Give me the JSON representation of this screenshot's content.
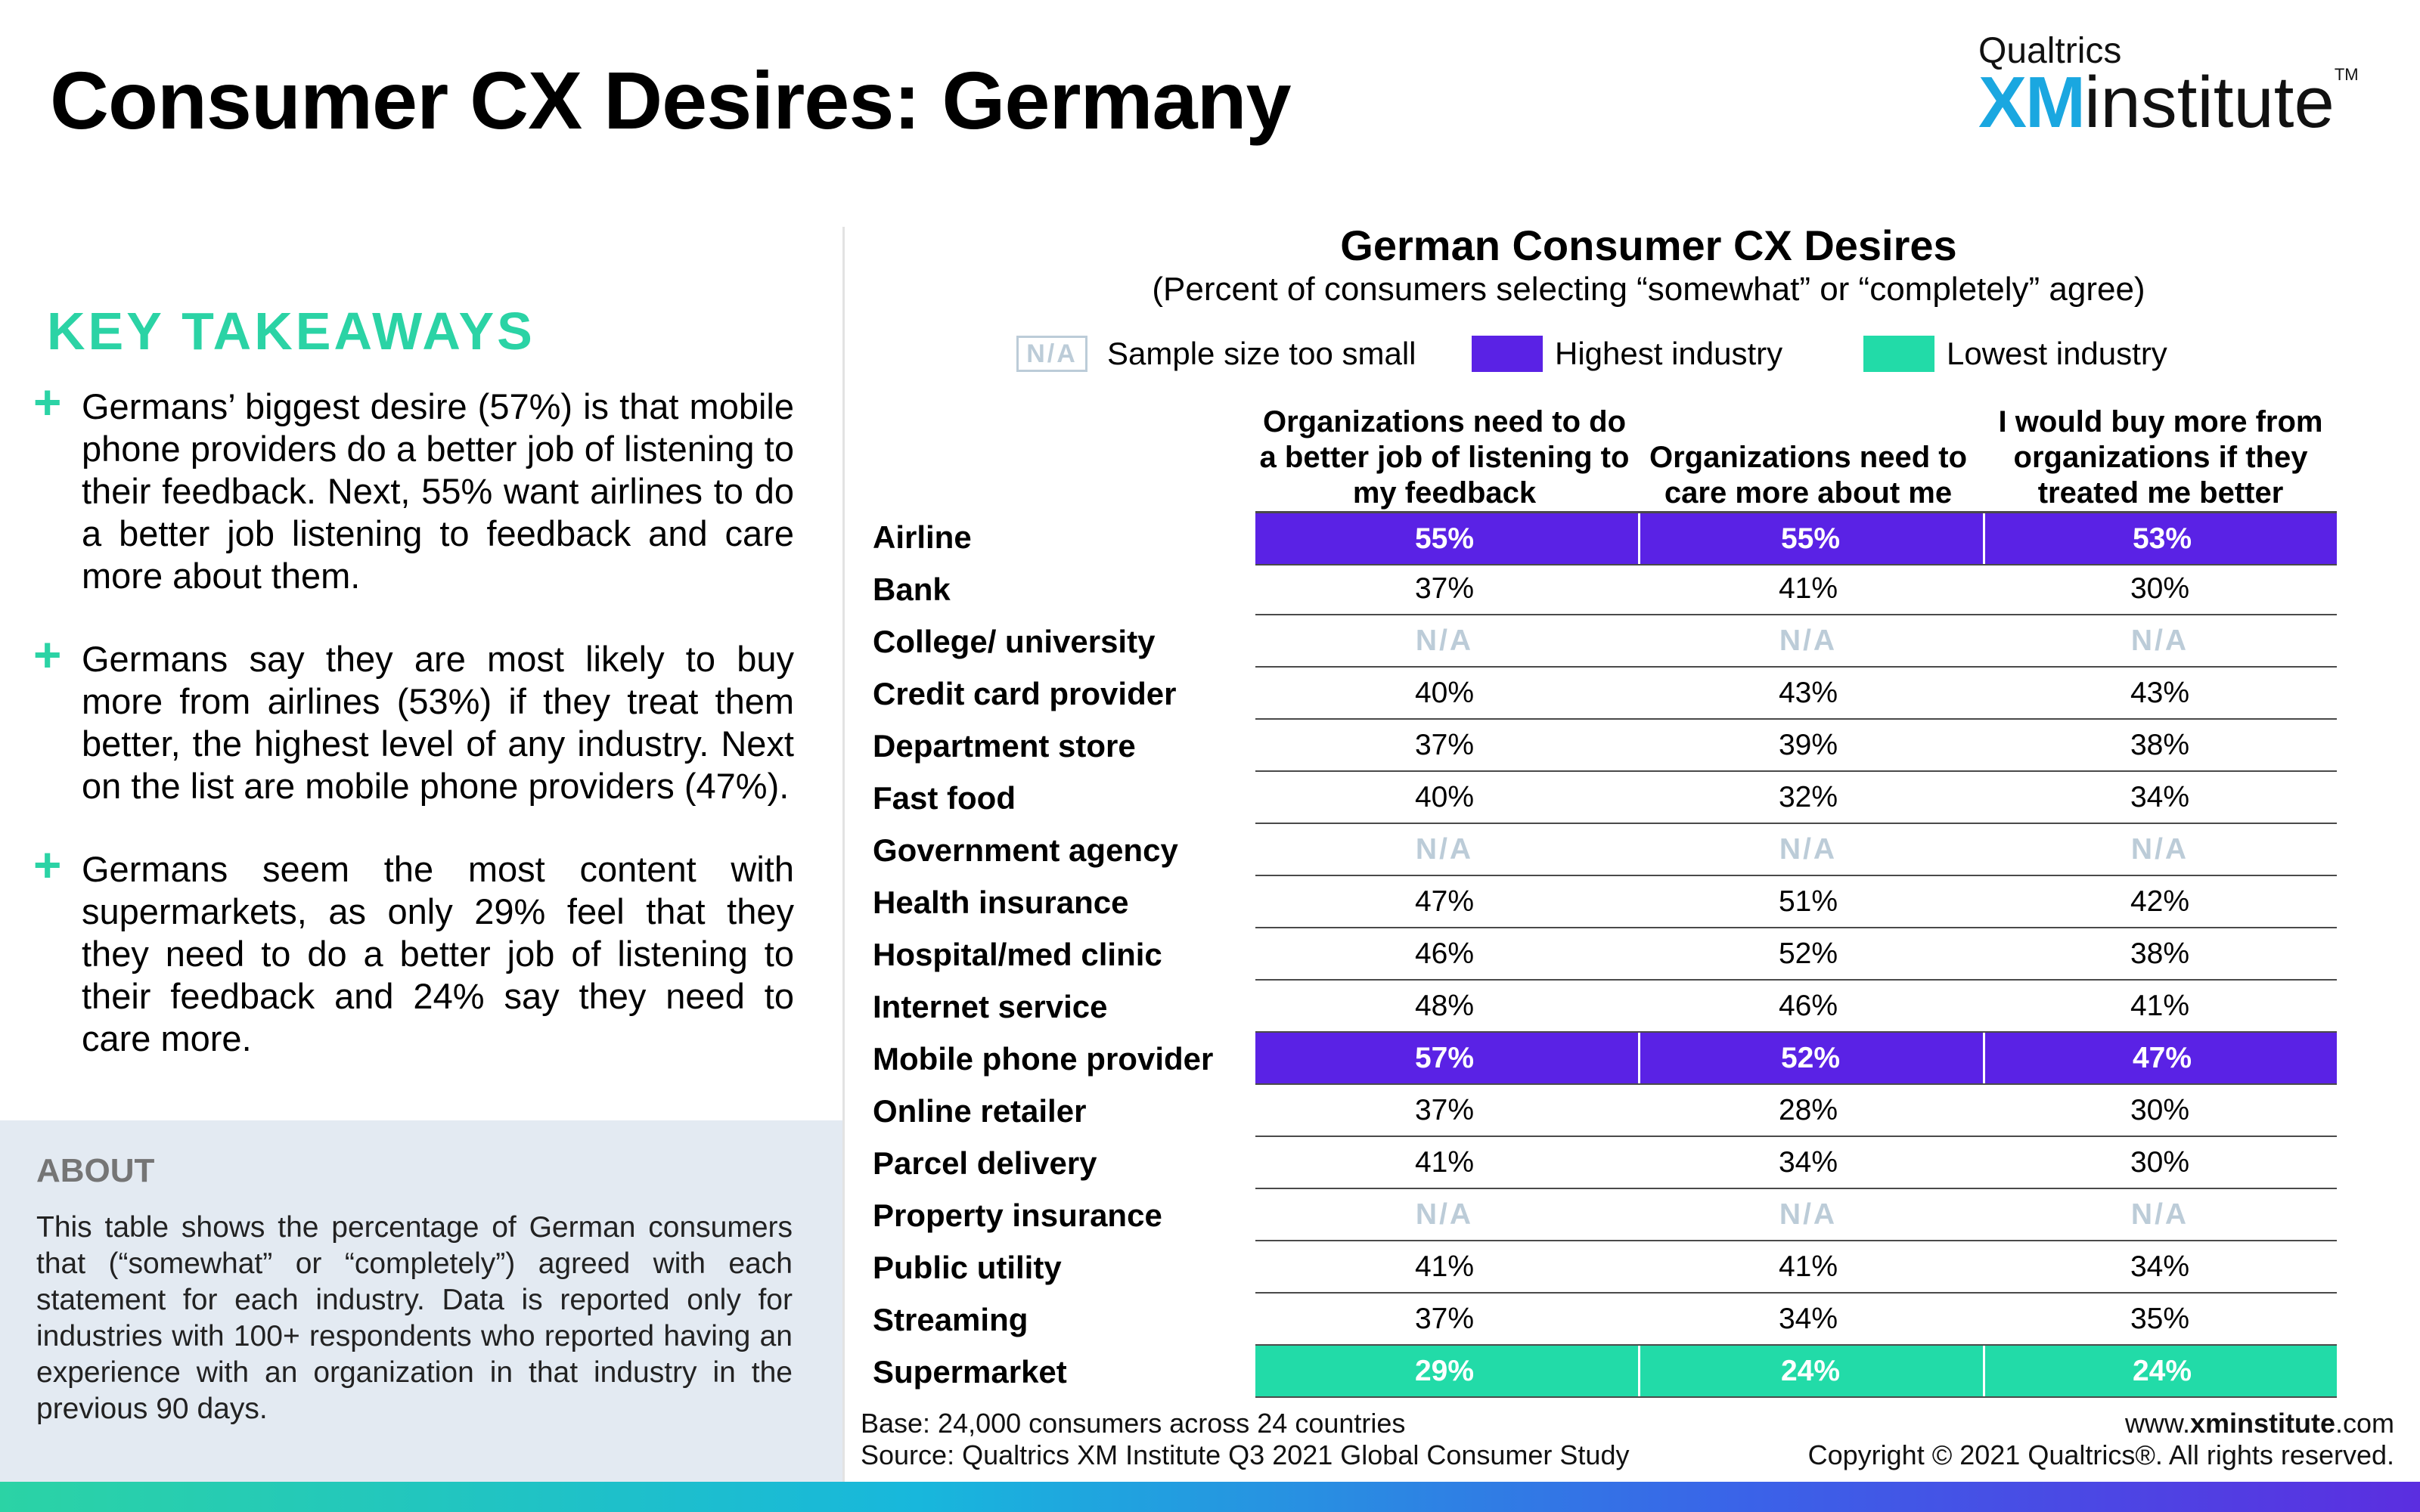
{
  "header": {
    "title": "Consumer CX Desires: Germany",
    "brand_top": "Qualtrics",
    "brand_xm": "XM",
    "brand_institute": "institute",
    "brand_tm": "TM"
  },
  "left": {
    "takeaways_heading": "KEY TAKEAWAYS",
    "plus_symbol": "+",
    "takeaways": [
      "Germans’ biggest desire (57%) is that mobile phone providers do a better job of listening to their feedback. Next, 55% want airlines to do a better job listening to feedback and care more about them.",
      "Germans say they are most likely to buy more from airlines (53%) if they treat them better, the highest level of any industry. Next on the list are mobile phone providers (47%).",
      "Germans seem the most content with supermarkets, as only 29% feel that they they need to do a better job of listening to their feedback and 24% say they need to care more."
    ],
    "about_heading": "ABOUT",
    "about_text": "This table shows the percentage of German consumers that (“somewhat” or “completely”) agreed with each statement for each industry. Data is reported only for industries with 100+ respondents who reported having an experience with an organization in that industry in the previous 90 days."
  },
  "chart": {
    "title": "German Consumer CX Desires",
    "subtitle": "(Percent of consumers selecting “somewhat” or “completely” agree)",
    "legend": {
      "na_swatch": "N/A",
      "na_label": "Sample size too small",
      "high_label": "Highest industry",
      "low_label": "Lowest industry"
    },
    "colors": {
      "highest": "#5a22e5",
      "lowest": "#22dba8",
      "na": "#bcccd8",
      "accent": "#2bd3a5"
    }
  },
  "chart_data": {
    "type": "table",
    "columns": [
      "Organizations need to do a better job of listening to my feedback",
      "Organizations need to care more about me",
      "I would buy more from organizations if they treated me better"
    ],
    "rows": [
      {
        "label": "Airline",
        "values": [
          "55%",
          "55%",
          "53%"
        ],
        "highlight": "highest"
      },
      {
        "label": "Bank",
        "values": [
          "37%",
          "41%",
          "30%"
        ]
      },
      {
        "label": "College/ university",
        "values": [
          "N/A",
          "N/A",
          "N/A"
        ]
      },
      {
        "label": "Credit card provider",
        "values": [
          "40%",
          "43%",
          "43%"
        ]
      },
      {
        "label": "Department store",
        "values": [
          "37%",
          "39%",
          "38%"
        ]
      },
      {
        "label": "Fast food",
        "values": [
          "40%",
          "32%",
          "34%"
        ]
      },
      {
        "label": "Government agency",
        "values": [
          "N/A",
          "N/A",
          "N/A"
        ]
      },
      {
        "label": "Health insurance",
        "values": [
          "47%",
          "51%",
          "42%"
        ]
      },
      {
        "label": "Hospital/med clinic",
        "values": [
          "46%",
          "52%",
          "38%"
        ]
      },
      {
        "label": "Internet service",
        "values": [
          "48%",
          "46%",
          "41%"
        ]
      },
      {
        "label": "Mobile phone provider",
        "values": [
          "57%",
          "52%",
          "47%"
        ],
        "highlight": "highest"
      },
      {
        "label": "Online retailer",
        "values": [
          "37%",
          "28%",
          "30%"
        ]
      },
      {
        "label": "Parcel delivery",
        "values": [
          "41%",
          "34%",
          "30%"
        ]
      },
      {
        "label": "Property insurance",
        "values": [
          "N/A",
          "N/A",
          "N/A"
        ]
      },
      {
        "label": "Public utility",
        "values": [
          "41%",
          "41%",
          "34%"
        ]
      },
      {
        "label": "Streaming",
        "values": [
          "37%",
          "34%",
          "35%"
        ]
      },
      {
        "label": "Supermarket",
        "values": [
          "29%",
          "24%",
          "24%"
        ],
        "highlight": "lowest"
      }
    ]
  },
  "footer": {
    "base": "Base: 24,000 consumers across 24 countries",
    "source": "Source: Qualtrics XM Institute Q3 2021 Global Consumer Study",
    "site_prefix": "www.",
    "site_bold": "xminstitute",
    "site_suffix": ".com",
    "copyright": "Copyright © 2021 Qualtrics®. All rights reserved."
  }
}
